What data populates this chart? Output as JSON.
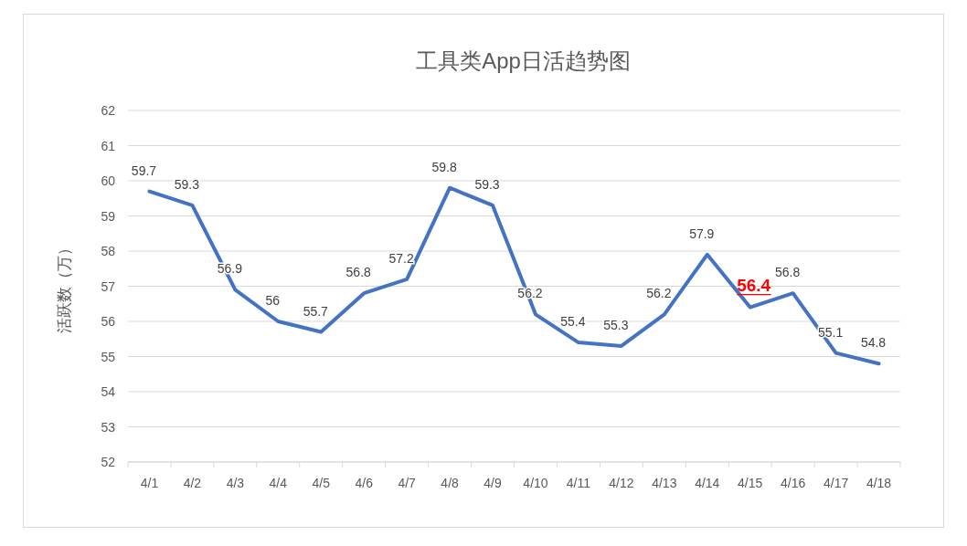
{
  "chart_data": {
    "type": "line",
    "title": "工具类App日活趋势图",
    "ylabel": "活跃数（万）",
    "categories": [
      "4/1",
      "4/2",
      "4/3",
      "4/4",
      "4/5",
      "4/6",
      "4/7",
      "4/8",
      "4/9",
      "4/10",
      "4/11",
      "4/12",
      "4/13",
      "4/14",
      "4/15",
      "4/16",
      "4/17",
      "4/18"
    ],
    "values": [
      59.7,
      59.3,
      56.9,
      56,
      55.7,
      56.8,
      57.2,
      59.8,
      59.3,
      56.2,
      55.4,
      55.3,
      56.2,
      57.9,
      56.4,
      56.8,
      55.1,
      54.8
    ],
    "value_labels": [
      "59.7",
      "59.3",
      "56.9",
      "56",
      "55.7",
      "56.8",
      "57.2",
      "59.8",
      "59.3",
      "56.2",
      "55.4",
      "55.3",
      "56.2",
      "57.9",
      null,
      "56.8",
      "55.1",
      "54.8"
    ],
    "annotations": [
      {
        "text": "56.4",
        "x": "4/15",
        "y": 56.4
      }
    ],
    "color": "#4472c4",
    "marker": "none",
    "ylim": [
      52,
      62
    ],
    "yticks": [
      52,
      53,
      54,
      55,
      56,
      57,
      58,
      59,
      60,
      61,
      62
    ],
    "grid": "y"
  }
}
